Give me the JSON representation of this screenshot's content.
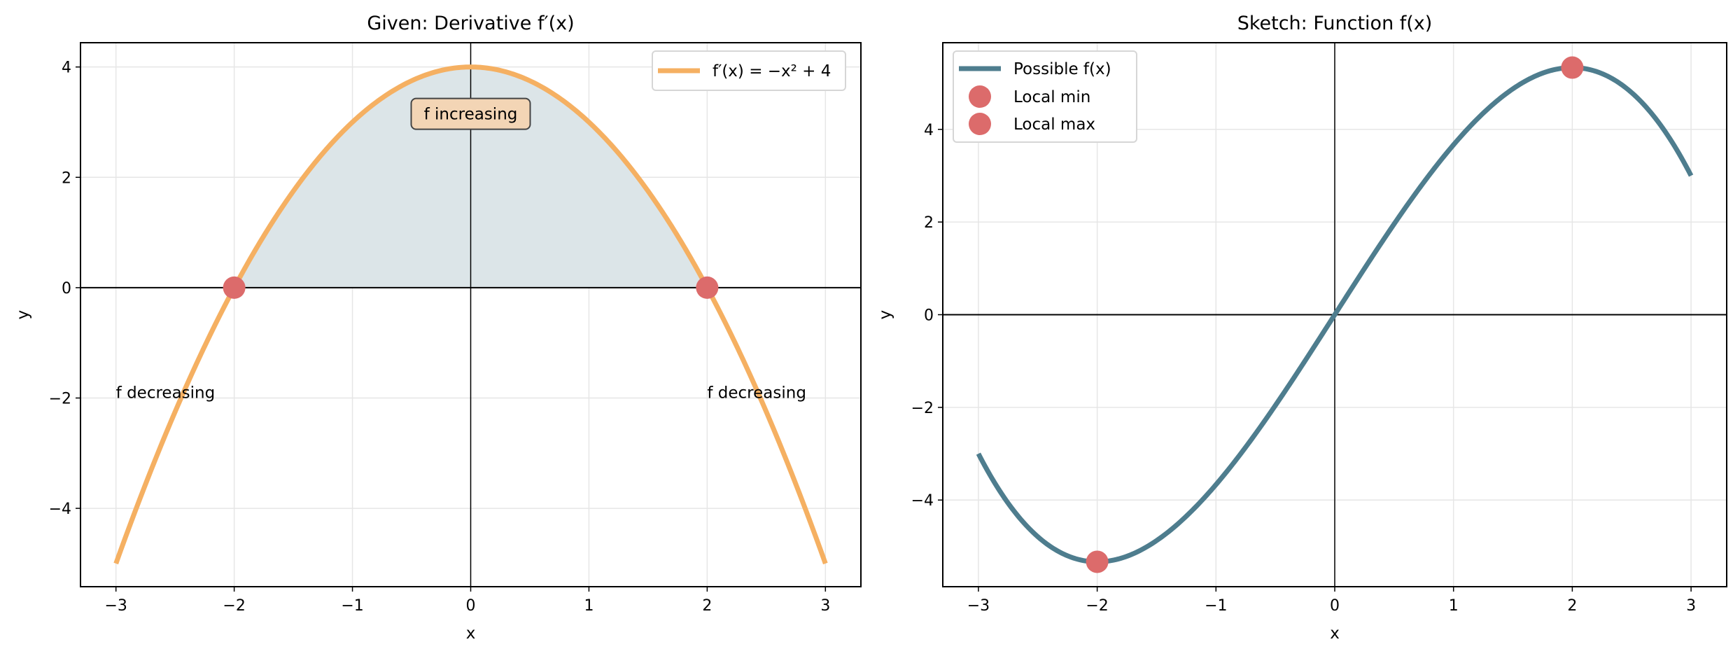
{
  "chart_data": [
    {
      "type": "line",
      "title": "Given: Derivative f′(x)",
      "xlabel": "x",
      "ylabel": "y",
      "xlim": [
        -3.3,
        3.3
      ],
      "ylim": [
        -5.42,
        4.44
      ],
      "xticks": [
        -3,
        -2,
        -1,
        0,
        1,
        2,
        3
      ],
      "xtick_labels": [
        "−3",
        "−2",
        "−1",
        "0",
        "1",
        "2",
        "3"
      ],
      "yticks": [
        -4,
        -2,
        0,
        2,
        4
      ],
      "ytick_labels": [
        "−4",
        "−2",
        "0",
        "2",
        "4"
      ],
      "grid": true,
      "legend_placement": "upper-right",
      "series": [
        {
          "name": "f′(x) = −x² + 4",
          "expression": "-x^2 + 4",
          "x_range": [
            -3,
            3
          ],
          "color": "#f5b062"
        }
      ],
      "shaded_region": {
        "x_range": [
          -2,
          2
        ],
        "between": [
          "f′(x)",
          "y=0"
        ],
        "color": "#dce5e8"
      },
      "points": [
        {
          "x": -2,
          "y": 0,
          "color": "#dc6b6b"
        },
        {
          "x": 2,
          "y": 0,
          "color": "#dc6b6b"
        }
      ],
      "annotations": [
        {
          "text": "f increasing",
          "x": 0,
          "y": 3.1,
          "boxed": true,
          "box_color": "#f3d5b5"
        },
        {
          "text": "f decreasing",
          "x": -3,
          "y": -1.9
        },
        {
          "text": "f decreasing",
          "x": 2,
          "y": -1.9
        }
      ]
    },
    {
      "type": "line",
      "title": "Sketch: Function f(x)",
      "xlabel": "x",
      "ylabel": "y",
      "xlim": [
        -3.3,
        3.3
      ],
      "ylim": [
        -5.87,
        5.87
      ],
      "xticks": [
        -3,
        -2,
        -1,
        0,
        1,
        2,
        3
      ],
      "xtick_labels": [
        "−3",
        "−2",
        "−1",
        "0",
        "1",
        "2",
        "3"
      ],
      "yticks": [
        -4,
        -2,
        0,
        2,
        4
      ],
      "ytick_labels": [
        "−4",
        "−2",
        "0",
        "2",
        "4"
      ],
      "grid": true,
      "legend_placement": "upper-left",
      "series": [
        {
          "name": "Possible f(x)",
          "expression": "4x - x^3/3",
          "x_range": [
            -3,
            3
          ],
          "color": "#4e7d8e"
        }
      ],
      "points": [
        {
          "name": "Local min",
          "x": -2,
          "y": -5.333,
          "color": "#dc6b6b"
        },
        {
          "name": "Local max",
          "x": 2,
          "y": 5.333,
          "color": "#dc6b6b"
        }
      ]
    }
  ]
}
